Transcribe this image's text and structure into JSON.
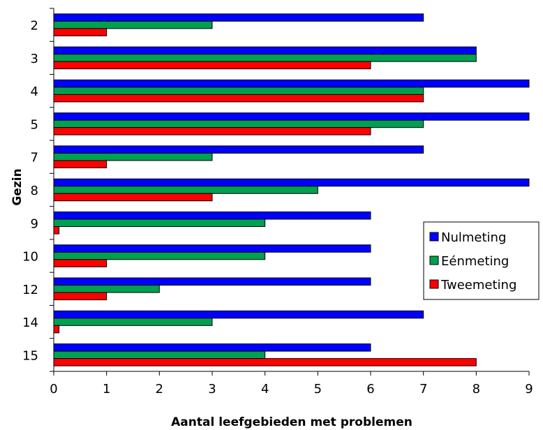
{
  "chart_data": {
    "type": "bar",
    "orientation": "horizontal",
    "title": "",
    "xlabel": "Aantal leefgebieden met problemen",
    "ylabel": "Gezin",
    "xlim": [
      0,
      9
    ],
    "xticks": [
      0,
      1,
      2,
      3,
      4,
      5,
      6,
      7,
      8,
      9
    ],
    "categories": [
      "2",
      "3",
      "4",
      "5",
      "7",
      "8",
      "9",
      "10",
      "12",
      "14",
      "15"
    ],
    "series": [
      {
        "name": "Nulmeting",
        "color": "#0000ff",
        "values": [
          7,
          8,
          9,
          9,
          7,
          9,
          6,
          6,
          6,
          7,
          6
        ]
      },
      {
        "name": "Eénmeting",
        "color": "#00a050",
        "values": [
          3,
          8,
          7,
          7,
          3,
          5,
          4,
          4,
          2,
          3,
          4
        ]
      },
      {
        "name": "Tweemeting",
        "color": "#ff0000",
        "values": [
          1,
          6,
          7,
          6,
          1,
          3,
          0.1,
          1,
          1,
          0.1,
          8
        ]
      }
    ],
    "grid": false,
    "legend_position": "right"
  }
}
